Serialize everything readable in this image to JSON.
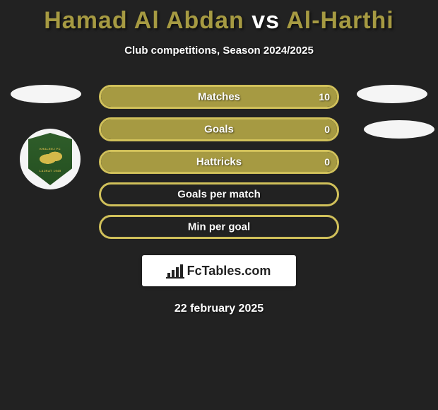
{
  "header": {
    "title_parts": [
      {
        "text": "Hamad Al Abdan",
        "color": "#a69a42"
      },
      {
        "text": " vs ",
        "color": "#ffffff"
      },
      {
        "text": "Al-Harthi",
        "color": "#a69a42"
      }
    ],
    "subtitle": "Club competitions, Season 2024/2025"
  },
  "colors": {
    "accent": "#a69a42",
    "bar_border": "#d0c05a",
    "bar_fill": "#a69a42",
    "background": "#222222"
  },
  "stats": [
    {
      "label": "Matches",
      "right_value": "10",
      "fill_pct": 100
    },
    {
      "label": "Goals",
      "right_value": "0",
      "fill_pct": 100
    },
    {
      "label": "Hattricks",
      "right_value": "0",
      "fill_pct": 100
    },
    {
      "label": "Goals per match",
      "right_value": "",
      "fill_pct": 0
    },
    {
      "label": "Min per goal",
      "right_value": "",
      "fill_pct": 0
    }
  ],
  "badge": {
    "top_text": "KHALEEJ FC",
    "bottom_text": "LAJNAT 1945"
  },
  "footer": {
    "brand": "FcTables.com",
    "date": "22 february 2025"
  }
}
